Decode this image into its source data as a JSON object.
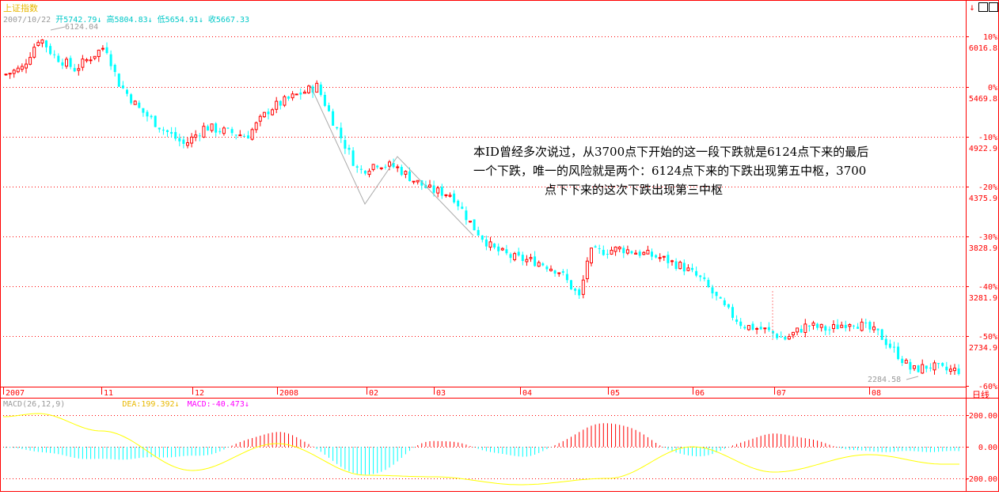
{
  "header": {
    "index_name": "上证指数",
    "date": "2007/10/22",
    "open_label": "开5742.79",
    "high_label": "高5804.83",
    "low_label": "低5654.91",
    "close_label": "收5667.33",
    "arrow": "↓"
  },
  "annotation": {
    "line1": "本ID曾经多次说过，从3700点下开始的这一段下跌就是6124点下来的最后",
    "line2": "一个下跌，唯一的风险就是两个：6124点下来的下跌出现第五中枢，3700",
    "line3": "点下下来的这次下跌出现第三中枢"
  },
  "labels": {
    "peak": "6124.04",
    "trough": "2284.58",
    "period": "日线",
    "macd_name": "MACD(26,12,9)",
    "dea_label": "DEA:199.392↓",
    "macd_value_label": "MACD:-40.473↓"
  },
  "colors": {
    "background": "#ffffff",
    "up_candle": "#ff0000",
    "down_candle": "#00ffff",
    "grid": "#ff0000",
    "axis_text": "#ff0000",
    "dea_line": "#ffff00",
    "title_yellow": "#e8b800",
    "annotation_text": "#000000"
  },
  "chart_data": [
    {
      "type": "candlestick",
      "title": "上证指数",
      "period": "日线",
      "x_ticks": [
        "2007",
        "11",
        "12",
        "2008",
        "02",
        "03",
        "04",
        "05",
        "06",
        "07",
        "08"
      ],
      "y_pct_ticks": [
        "10%",
        "0%",
        "-10%",
        "-20%",
        "-30%",
        "-40%",
        "-50%",
        "-60%"
      ],
      "y_price_ticks": [
        "6016.8",
        "5469.8",
        "4922.9",
        "4375.9",
        "3828.9",
        "3281.9",
        "2734.9"
      ],
      "y_range": [
        2200,
        6250
      ],
      "peak": {
        "label": "6124.04",
        "value": 6124.04,
        "date": "2007/10/16"
      },
      "trough": {
        "label": "2284.58",
        "value": 2284.58,
        "date": "2008/08"
      },
      "selected_day": {
        "date": "2007/10/22",
        "open": 5742.79,
        "high": 5804.83,
        "low": 5654.91,
        "close": 5667.33
      },
      "close_path": [
        [
          "2007/10/08",
          5630
        ],
        [
          "2007/10/12",
          5700
        ],
        [
          "2007/10/16",
          6050
        ],
        [
          "2007/10/19",
          5850
        ],
        [
          "2007/10/24",
          5690
        ],
        [
          "2007/10/31",
          5950
        ],
        [
          "2007/11/06",
          5550
        ],
        [
          "2007/11/13",
          5250
        ],
        [
          "2007/11/20",
          5050
        ],
        [
          "2007/11/28",
          4850
        ],
        [
          "2007/12/05",
          5050
        ],
        [
          "2007/12/12",
          5000
        ],
        [
          "2007/12/20",
          4950
        ],
        [
          "2007/12/28",
          5250
        ],
        [
          "2008/01/07",
          5400
        ],
        [
          "2008/01/14",
          5500
        ],
        [
          "2008/01/21",
          5000
        ],
        [
          "2008/01/28",
          4550
        ],
        [
          "2008/02/05",
          4650
        ],
        [
          "2008/02/14",
          4600
        ],
        [
          "2008/02/22",
          4450
        ],
        [
          "2008/02/29",
          4350
        ],
        [
          "2008/03/07",
          4300
        ],
        [
          "2008/03/14",
          3950
        ],
        [
          "2008/03/21",
          3700
        ],
        [
          "2008/03/28",
          3600
        ],
        [
          "2008/04/07",
          3550
        ],
        [
          "2008/04/14",
          3450
        ],
        [
          "2008/04/21",
          3150
        ],
        [
          "2008/04/24",
          3650
        ],
        [
          "2008/05/05",
          3700
        ],
        [
          "2008/05/12",
          3650
        ],
        [
          "2008/05/19",
          3600
        ],
        [
          "2008/05/27",
          3500
        ],
        [
          "2008/06/04",
          3350
        ],
        [
          "2008/06/12",
          3050
        ],
        [
          "2008/06/19",
          2850
        ],
        [
          "2008/06/27",
          2800
        ],
        [
          "2008/07/04",
          2700
        ],
        [
          "2008/07/11",
          2850
        ],
        [
          "2008/07/18",
          2800
        ],
        [
          "2008/07/25",
          2900
        ],
        [
          "2008/08/04",
          2750
        ],
        [
          "2008/08/11",
          2500
        ],
        [
          "2008/08/15",
          2350
        ],
        [
          "2008/08/21",
          2400
        ],
        [
          "2008/08/26",
          2350
        ]
      ]
    },
    {
      "type": "bar",
      "title": "MACD(26,12,9)",
      "series": [
        {
          "name": "DEA",
          "last": 199.392
        },
        {
          "name": "MACD",
          "last": -40.473
        }
      ],
      "y_ticks": [
        "200.00",
        "0.00",
        "-200.00"
      ],
      "y_range": [
        -260,
        260
      ],
      "dea_path": [
        [
          "2007/10",
          190
        ],
        [
          "2007/10/16",
          210
        ],
        [
          "2007/11",
          100
        ],
        [
          "2007/12",
          -150
        ],
        [
          "2008/01",
          20
        ],
        [
          "2008/02",
          -180
        ],
        [
          "2008/03",
          -190
        ],
        [
          "2008/04",
          -240
        ],
        [
          "2008/05",
          -200
        ],
        [
          "2008/06",
          0
        ],
        [
          "2008/07",
          -160
        ],
        [
          "2008/08",
          -50
        ],
        [
          "2008/08/26",
          -110
        ]
      ],
      "histogram": [
        [
          "2007/10",
          -10
        ],
        [
          "2007/11",
          -80
        ],
        [
          "2007/12",
          -60
        ],
        [
          "2008/01",
          90
        ],
        [
          "2008/02",
          -180
        ],
        [
          "2008/03",
          40
        ],
        [
          "2008/04",
          -60
        ],
        [
          "2008/05",
          150
        ],
        [
          "2008/06",
          -60
        ],
        [
          "2008/07",
          80
        ],
        [
          "2008/08",
          -30
        ]
      ]
    }
  ]
}
